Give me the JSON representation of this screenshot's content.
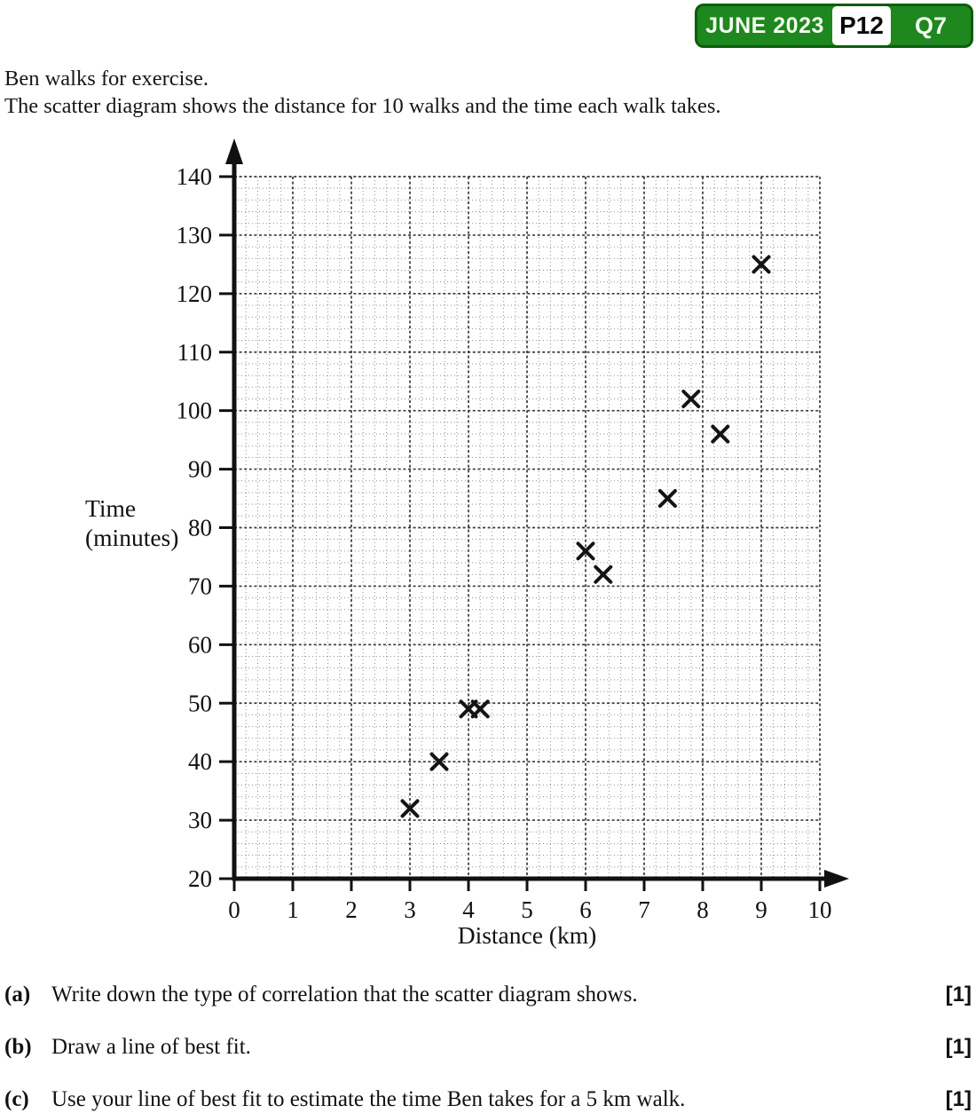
{
  "header": {
    "exam": "JUNE 2023",
    "paper": "P12",
    "question": "Q7"
  },
  "intro": {
    "line1": "Ben walks for exercise.",
    "line2": "The scatter diagram shows the distance for 10 walks and the time each walk takes."
  },
  "chart_data": {
    "type": "scatter",
    "title": "",
    "xlabel": "Distance (km)",
    "ylabel": "Time (minutes)",
    "ylabel_lines": [
      "Time",
      "(minutes)"
    ],
    "xlim": [
      0,
      10
    ],
    "ylim": [
      20,
      140
    ],
    "x_ticks": [
      0,
      1,
      2,
      3,
      4,
      5,
      6,
      7,
      8,
      9,
      10
    ],
    "y_ticks": [
      20,
      30,
      40,
      50,
      60,
      70,
      80,
      90,
      100,
      110,
      120,
      130,
      140
    ],
    "x_minor_step": 0.2,
    "y_minor_step": 2,
    "grid": true,
    "legend": false,
    "marker": "x",
    "points": [
      [
        3,
        32
      ],
      [
        3.5,
        40
      ],
      [
        4,
        49
      ],
      [
        4.2,
        49
      ],
      [
        6,
        76
      ],
      [
        6.3,
        72
      ],
      [
        7.4,
        85
      ],
      [
        7.8,
        102
      ],
      [
        8.3,
        96
      ],
      [
        9,
        125
      ]
    ]
  },
  "questions": [
    {
      "part": "(a)",
      "text": "Write down the type of correlation that the scatter diagram shows.",
      "mark": "[1]"
    },
    {
      "part": "(b)",
      "text": "Draw a line of best fit.",
      "mark": "[1]"
    },
    {
      "part": "(c)",
      "text": "Use your line of best fit to estimate the time Ben takes for a 5 km walk.",
      "mark": "[1]"
    }
  ],
  "colors": {
    "badge_green": "#1e871e",
    "badge_border": "#0b5e0b",
    "badge_text": "#f2faef",
    "marker": "#141414",
    "grid_minor": "#8f8f8f",
    "grid_major": "#3a3a3a"
  }
}
